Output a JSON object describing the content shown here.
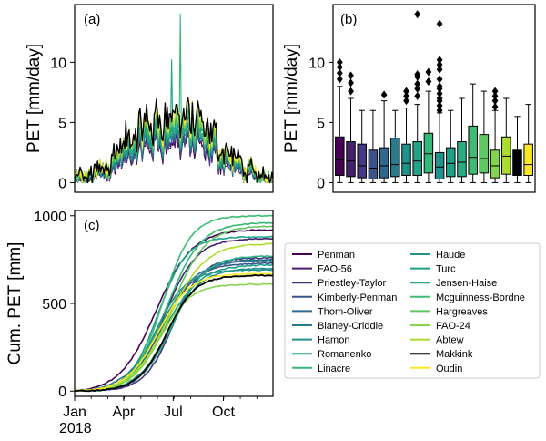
{
  "colors": {
    "Penman": "#440154",
    "FAO-56": "#481f70",
    "Priestley-Taylor": "#443983",
    "Kimberly-Penman": "#3b528b",
    "Thom-Oliver": "#31688e",
    "Blaney-Criddle": "#287c8e",
    "Hamon": "#21918c",
    "Romanenko": "#20a486",
    "Linacre": "#35b779",
    "Haude": "#21918c",
    "Turc": "#1fa088",
    "Jensen-Haise": "#28ae80",
    "Mcguinness-Bordne": "#3fbc73",
    "Hargreaves": "#5ec962",
    "FAO-24": "#84d44b",
    "Abtew": "#addc30",
    "Makkink": "#000000",
    "Oudin": "#fde725"
  },
  "chart_data": [
    {
      "panel": "(a)",
      "type": "line",
      "title": "",
      "xlabel": "",
      "ylabel": "PET [mm/day]",
      "xlim": [
        0,
        364
      ],
      "ylim": [
        -0.8,
        14.8
      ],
      "yticks": [
        0,
        5,
        10
      ],
      "description_values": {
        "seasonal_peak_mean": 4.2,
        "max_spike_value": 14.0,
        "max_spike_day": 194,
        "second_spike_value": 10.2,
        "second_spike_day": 178
      }
    },
    {
      "panel": "(b)",
      "type": "box",
      "title": "",
      "ylabel": "PET [mm/day]",
      "ylim": [
        -0.8,
        14.8
      ],
      "yticks": [
        0,
        5,
        10
      ],
      "series": [
        {
          "name": "Penman",
          "q1": 0.6,
          "median": 1.9,
          "q3": 3.8,
          "whisker_low": 0.0,
          "whisker_high": 8.0,
          "outliers": [
            8.6,
            9.1,
            9.6,
            10.0
          ]
        },
        {
          "name": "FAO-56",
          "q1": 0.5,
          "median": 1.8,
          "q3": 3.4,
          "whisker_low": 0.0,
          "whisker_high": 7.0,
          "outliers": [
            7.6,
            8.3,
            8.9
          ]
        },
        {
          "name": "Priestley-Taylor",
          "q1": 0.4,
          "median": 1.4,
          "q3": 3.2,
          "whisker_low": 0.0,
          "whisker_high": 6.0,
          "outliers": []
        },
        {
          "name": "Kimberly-Penman",
          "q1": 0.3,
          "median": 1.2,
          "q3": 2.7,
          "whisker_low": 0.0,
          "whisker_high": 6.0,
          "outliers": []
        },
        {
          "name": "Thom-Oliver",
          "q1": 0.4,
          "median": 1.4,
          "q3": 2.9,
          "whisker_low": 0.0,
          "whisker_high": 6.8,
          "outliers": [
            7.3
          ]
        },
        {
          "name": "Blaney-Criddle",
          "q1": 0.5,
          "median": 1.5,
          "q3": 3.7,
          "whisker_low": 0.0,
          "whisker_high": 6.0,
          "outliers": []
        },
        {
          "name": "Hamon",
          "q1": 0.6,
          "median": 1.6,
          "q3": 3.2,
          "whisker_low": 0.0,
          "whisker_high": 6.2,
          "outliers": [
            6.8,
            7.2,
            7.6
          ]
        },
        {
          "name": "Romanenko",
          "q1": 0.6,
          "median": 1.8,
          "q3": 3.4,
          "whisker_low": 0.0,
          "whisker_high": 6.5,
          "outliers": [
            7.2,
            7.8,
            8.2,
            8.8,
            9.0,
            14.0
          ]
        },
        {
          "name": "Linacre",
          "q1": 0.8,
          "median": 2.4,
          "q3": 4.1,
          "whisker_low": 0.0,
          "whisker_high": 7.6,
          "outliers": [
            8.4,
            9.2
          ]
        },
        {
          "name": "Haude",
          "q1": 0.3,
          "median": 1.3,
          "q3": 2.5,
          "whisker_low": 0.0,
          "whisker_high": 5.8,
          "outliers": [
            6.0,
            6.4,
            6.8,
            7.0,
            7.4,
            7.8,
            8.0,
            8.6,
            9.4,
            9.8,
            10.2,
            13.2
          ]
        },
        {
          "name": "Turc",
          "q1": 0.5,
          "median": 1.6,
          "q3": 2.9,
          "whisker_low": 0.0,
          "whisker_high": 6.0,
          "outliers": []
        },
        {
          "name": "Jensen-Haise",
          "q1": 0.5,
          "median": 1.7,
          "q3": 3.4,
          "whisker_low": 0.0,
          "whisker_high": 7.0,
          "outliers": []
        },
        {
          "name": "Mcguinness-Bordne",
          "q1": 0.7,
          "median": 2.1,
          "q3": 4.7,
          "whisker_low": 0.0,
          "whisker_high": 8.2,
          "outliers": []
        },
        {
          "name": "Hargreaves",
          "q1": 0.8,
          "median": 2.0,
          "q3": 4.0,
          "whisker_low": 0.0,
          "whisker_high": 7.6,
          "outliers": []
        },
        {
          "name": "FAO-24",
          "q1": 0.4,
          "median": 1.4,
          "q3": 2.7,
          "whisker_low": 0.0,
          "whisker_high": 6.0,
          "outliers": [
            6.3,
            6.8,
            7.2,
            7.6
          ]
        },
        {
          "name": "Abtew",
          "q1": 0.7,
          "median": 2.2,
          "q3": 3.8,
          "whisker_low": 0.0,
          "whisker_high": 7.0,
          "outliers": []
        },
        {
          "name": "Makkink",
          "q1": 0.6,
          "median": 1.8,
          "q3": 2.7,
          "whisker_low": 0.0,
          "whisker_high": 5.5,
          "outliers": []
        },
        {
          "name": "Oudin",
          "q1": 0.6,
          "median": 1.5,
          "q3": 3.2,
          "whisker_low": 0.0,
          "whisker_high": 6.5,
          "outliers": []
        }
      ]
    },
    {
      "panel": "(c)",
      "type": "line",
      "ylabel": "Cum. PET [mm]",
      "xlim": [
        0,
        364
      ],
      "ylim": [
        -30,
        1030
      ],
      "yticks": [
        0,
        500,
        1000
      ],
      "xticks": [
        {
          "day": 0,
          "label": "Jan"
        },
        {
          "day": 90,
          "label": "Apr"
        },
        {
          "day": 181,
          "label": "Jul"
        },
        {
          "day": 273,
          "label": "Oct"
        }
      ],
      "year_label": "2018",
      "series": [
        {
          "name": "Penman",
          "final": 920
        },
        {
          "name": "FAO-56",
          "final": 870
        },
        {
          "name": "Priestley-Taylor",
          "final": 760
        },
        {
          "name": "Kimberly-Penman",
          "final": 730
        },
        {
          "name": "Thom-Oliver",
          "final": 750
        },
        {
          "name": "Blaney-Criddle",
          "final": 745
        },
        {
          "name": "Hamon",
          "final": 700
        },
        {
          "name": "Romanenko",
          "final": 880
        },
        {
          "name": "Linacre",
          "final": 960
        },
        {
          "name": "Haude",
          "final": 690
        },
        {
          "name": "Turc",
          "final": 720
        },
        {
          "name": "Jensen-Haise",
          "final": 770
        },
        {
          "name": "Mcguinness-Bordne",
          "final": 1000
        },
        {
          "name": "Hargreaves",
          "final": 940
        },
        {
          "name": "FAO-24",
          "final": 610
        },
        {
          "name": "Abtew",
          "final": 840
        },
        {
          "name": "Makkink",
          "final": 660
        },
        {
          "name": "Oudin",
          "final": 670
        }
      ]
    }
  ],
  "legend": {
    "col1": [
      "Penman",
      "FAO-56",
      "Priestley-Taylor",
      "Kimberly-Penman",
      "Thom-Oliver",
      "Blaney-Criddle",
      "Hamon",
      "Romanenko",
      "Linacre"
    ],
    "col2": [
      "Haude",
      "Turc",
      "Jensen-Haise",
      "Mcguinness-Bordne",
      "Hargreaves",
      "FAO-24",
      "Abtew",
      "Makkink",
      "Oudin"
    ]
  }
}
